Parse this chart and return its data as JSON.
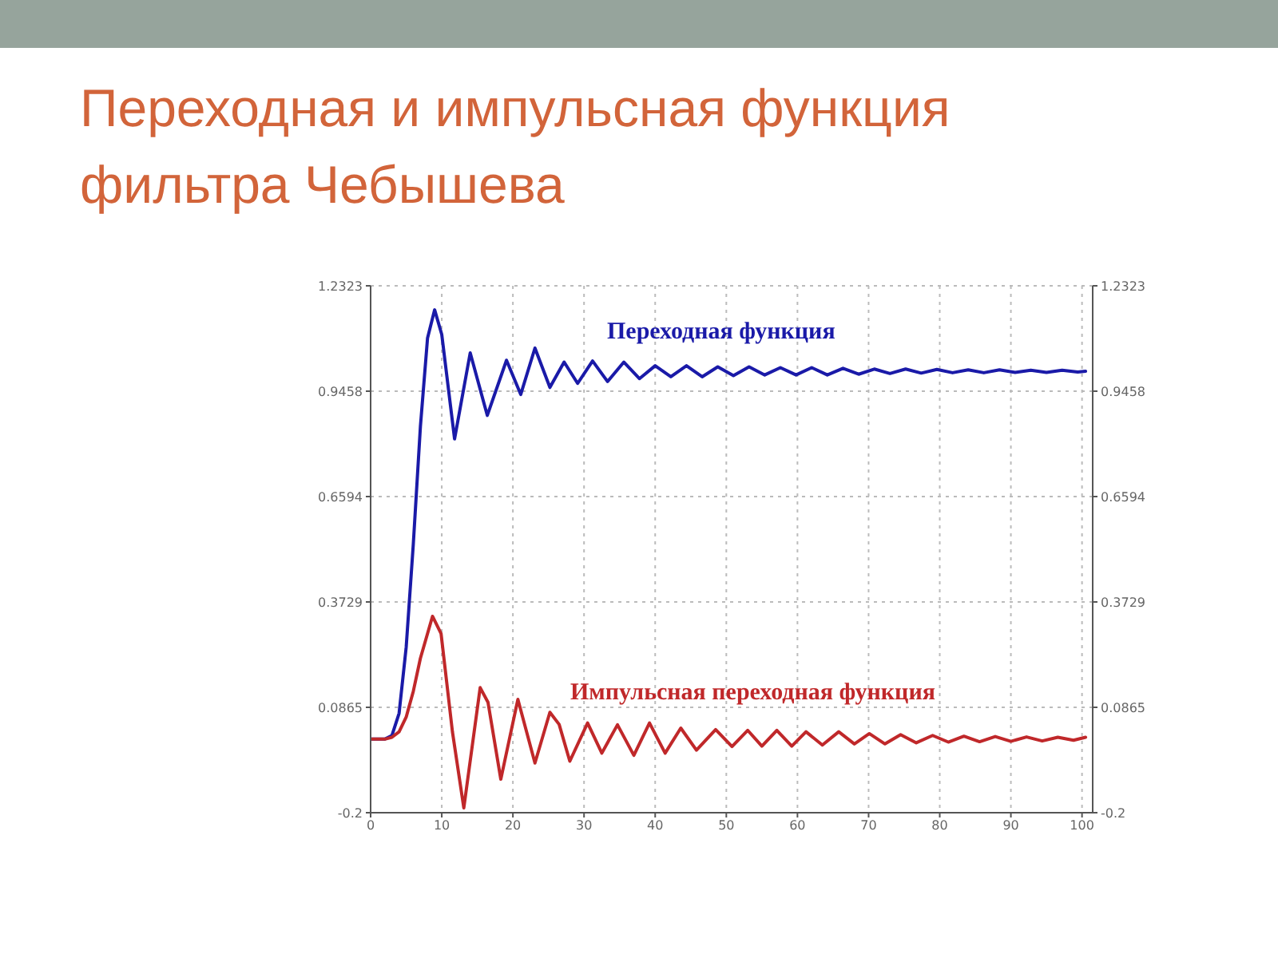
{
  "chart_data": {
    "type": "line",
    "title": "Переходная и импульсная функция фильтра Чебышева",
    "xlim": [
      0,
      101.5
    ],
    "xticks": [
      0,
      10,
      20,
      30,
      40,
      50,
      60,
      70,
      80,
      90,
      100
    ],
    "ylim": [
      -0.2,
      1.2323
    ],
    "yticks": [
      -0.2,
      0.0865,
      0.3729,
      0.6594,
      0.9458,
      1.2323
    ],
    "y2lim": [
      -0.2,
      1.2323
    ],
    "y2ticks": [
      -0.2,
      0.0865,
      0.3729,
      0.6594,
      0.9458,
      1.2323
    ],
    "grid": true,
    "legend": false,
    "line_style": "solid",
    "marker": "none",
    "series": [
      {
        "name": "Переходная функция",
        "color": "#1a1aa8",
        "x": [
          0,
          2,
          3,
          4,
          5,
          6,
          7,
          8,
          9,
          10,
          11.8,
          14,
          16.4,
          19.1,
          21.1,
          23.1,
          25.2,
          27.2,
          29.1,
          31.2,
          33.3,
          35.6,
          37.8,
          40,
          42.2,
          44.4,
          46.6,
          48.8,
          51,
          53.2,
          55.4,
          57.6,
          59.8,
          62,
          64.2,
          66.4,
          68.6,
          70.8,
          73,
          75.2,
          77.4,
          79.6,
          81.8,
          84,
          86.2,
          88.4,
          90.6,
          92.8,
          95,
          97.2,
          99.4,
          100.5
        ],
        "values": [
          0,
          0,
          0.01,
          0.07,
          0.25,
          0.53,
          0.85,
          1.09,
          1.167,
          1.1,
          0.816,
          1.05,
          0.88,
          1.03,
          0.937,
          1.063,
          0.956,
          1.025,
          0.967,
          1.028,
          0.972,
          1.025,
          0.98,
          1.015,
          0.985,
          1.015,
          0.985,
          1.012,
          0.988,
          1.012,
          0.99,
          1.01,
          0.99,
          1.01,
          0.99,
          1.008,
          0.992,
          1.006,
          0.994,
          1.006,
          0.995,
          1.005,
          0.996,
          1.004,
          0.996,
          1.004,
          0.997,
          1.003,
          0.997,
          1.003,
          0.998,
          1.0
        ]
      },
      {
        "name": "Импульсная переходная функция",
        "color": "#c0282a",
        "x": [
          0,
          2,
          3,
          4,
          5,
          6,
          7,
          8.7,
          9.9,
          11.5,
          13.1,
          15.4,
          16.5,
          18.3,
          20.7,
          23.1,
          25.2,
          26.5,
          28,
          30.5,
          32.5,
          34.7,
          37,
          39.2,
          41.4,
          43.6,
          45.8,
          48.5,
          50.8,
          53,
          55,
          57.1,
          59.2,
          61.2,
          63.5,
          65.8,
          68,
          70.1,
          72.3,
          74.5,
          76.7,
          79,
          81.2,
          83.4,
          85.6,
          87.8,
          90,
          92.2,
          94.4,
          96.6,
          98.8,
          100.5
        ],
        "values": [
          0,
          0,
          0.005,
          0.02,
          0.06,
          0.13,
          0.22,
          0.334,
          0.287,
          0.02,
          -0.187,
          0.14,
          0.1,
          -0.109,
          0.108,
          -0.065,
          0.073,
          0.04,
          -0.06,
          0.044,
          -0.038,
          0.039,
          -0.044,
          0.044,
          -0.038,
          0.03,
          -0.03,
          0.026,
          -0.02,
          0.024,
          -0.019,
          0.024,
          -0.019,
          0.02,
          -0.016,
          0.02,
          -0.013,
          0.015,
          -0.013,
          0.012,
          -0.01,
          0.01,
          -0.008,
          0.008,
          -0.007,
          0.007,
          -0.006,
          0.006,
          -0.005,
          0.005,
          -0.003,
          0.005
        ]
      }
    ]
  }
}
